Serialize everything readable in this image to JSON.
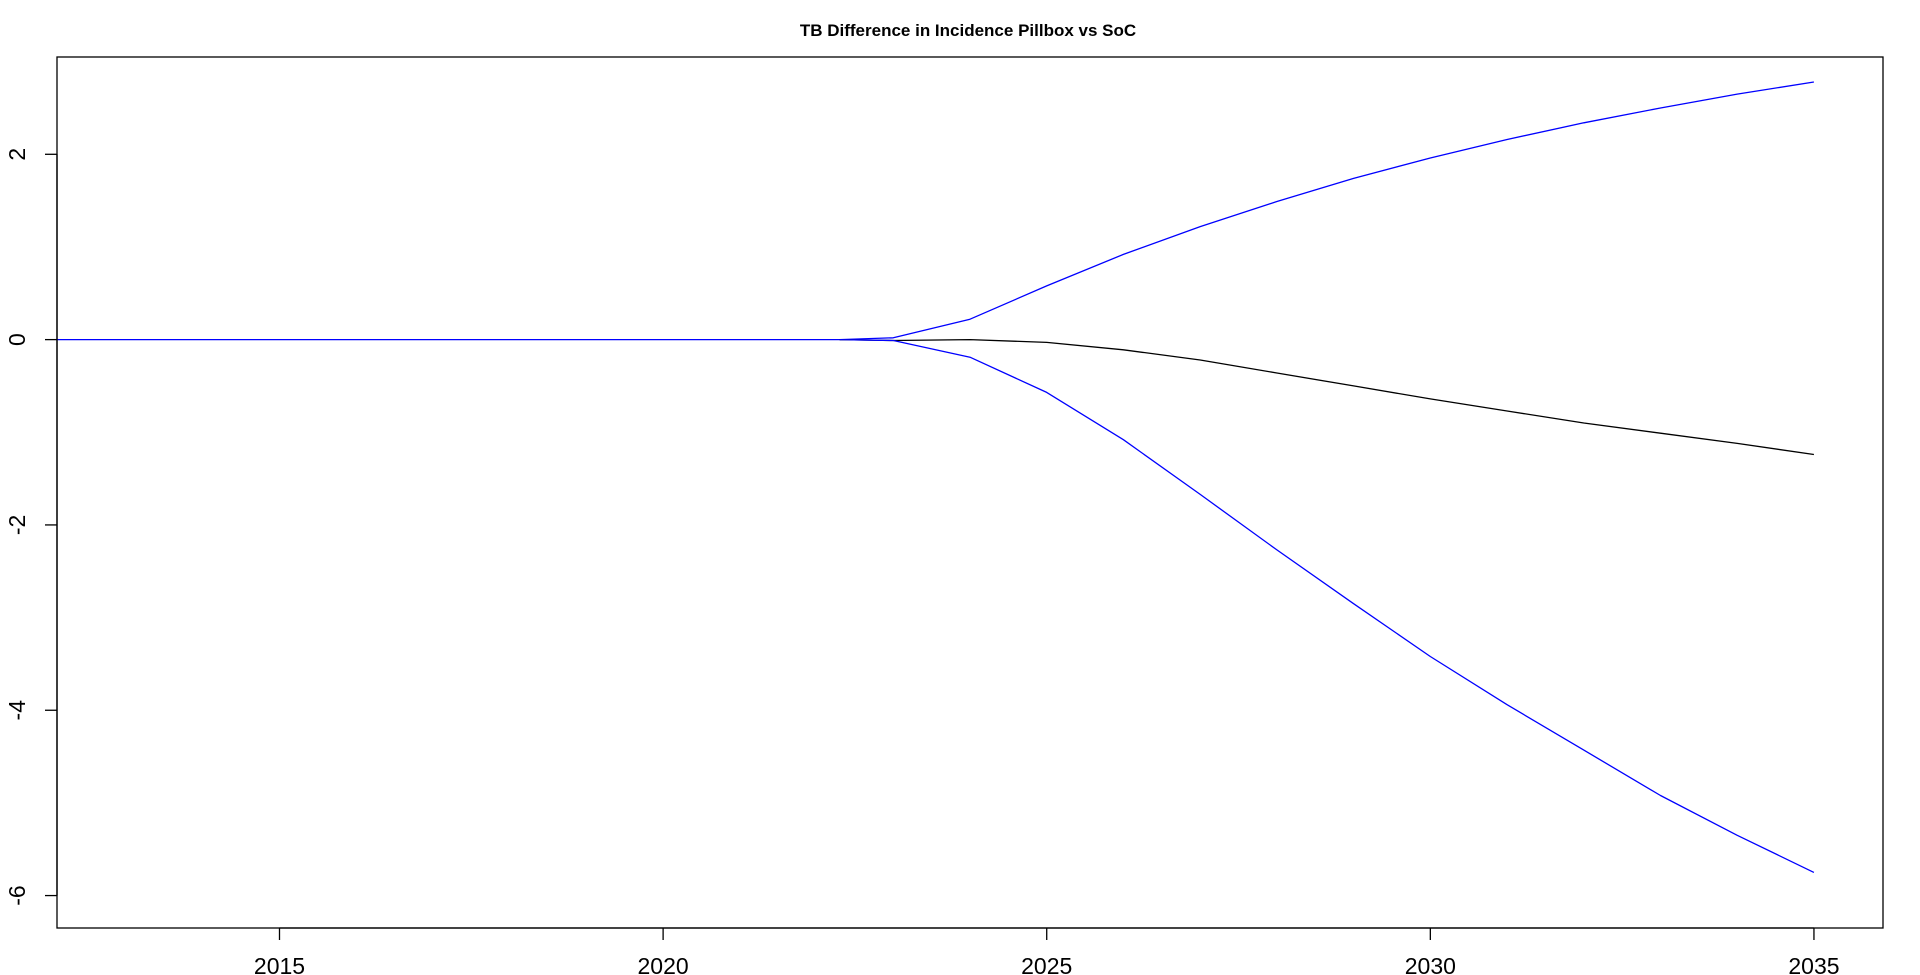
{
  "chart_data": {
    "type": "line",
    "title": "TB Difference in Incidence Pillbox vs SoC",
    "xlabel": "",
    "ylabel": "",
    "xlim": [
      2012.1,
      2035.9
    ],
    "ylim": [
      -6.35,
      3.05
    ],
    "x_ticks": [
      2015,
      2020,
      2025,
      2030,
      2035
    ],
    "x_tick_labels": [
      "2015",
      "2020",
      "2025",
      "2030",
      "2035"
    ],
    "y_ticks": [
      -6,
      -4,
      -2,
      0,
      2
    ],
    "y_tick_labels": [
      "-6",
      "-4",
      "-2",
      "0",
      "2"
    ],
    "grid": false,
    "legend": "none",
    "series": [
      {
        "color": "#0000ff",
        "x": [
          2012.1,
          2022.3,
          2023,
          2024,
          2025,
          2026,
          2027,
          2028,
          2029,
          2030,
          2031,
          2032,
          2033,
          2034,
          2035
        ],
        "y": [
          0,
          0,
          0.02,
          0.22,
          0.58,
          0.92,
          1.22,
          1.49,
          1.74,
          1.96,
          2.16,
          2.34,
          2.5,
          2.65,
          2.78
        ]
      },
      {
        "color": "#000000",
        "x": [
          2022.3,
          2023,
          2024,
          2025,
          2026,
          2027,
          2028,
          2029,
          2030,
          2031,
          2032,
          2033,
          2034,
          2035
        ],
        "y": [
          0,
          -0.01,
          0,
          -0.03,
          -0.11,
          -0.22,
          -0.36,
          -0.5,
          -0.64,
          -0.77,
          -0.9,
          -1.01,
          -1.12,
          -1.24
        ]
      },
      {
        "color": "#0000ff",
        "x": [
          2022.3,
          2023,
          2024,
          2025,
          2026,
          2027,
          2028,
          2029,
          2030,
          2031,
          2032,
          2033,
          2034,
          2035
        ],
        "y": [
          0,
          -0.01,
          -0.19,
          -0.57,
          -1.08,
          -1.67,
          -2.27,
          -2.85,
          -3.42,
          -3.94,
          -4.43,
          -4.92,
          -5.35,
          -5.75
        ]
      }
    ]
  }
}
